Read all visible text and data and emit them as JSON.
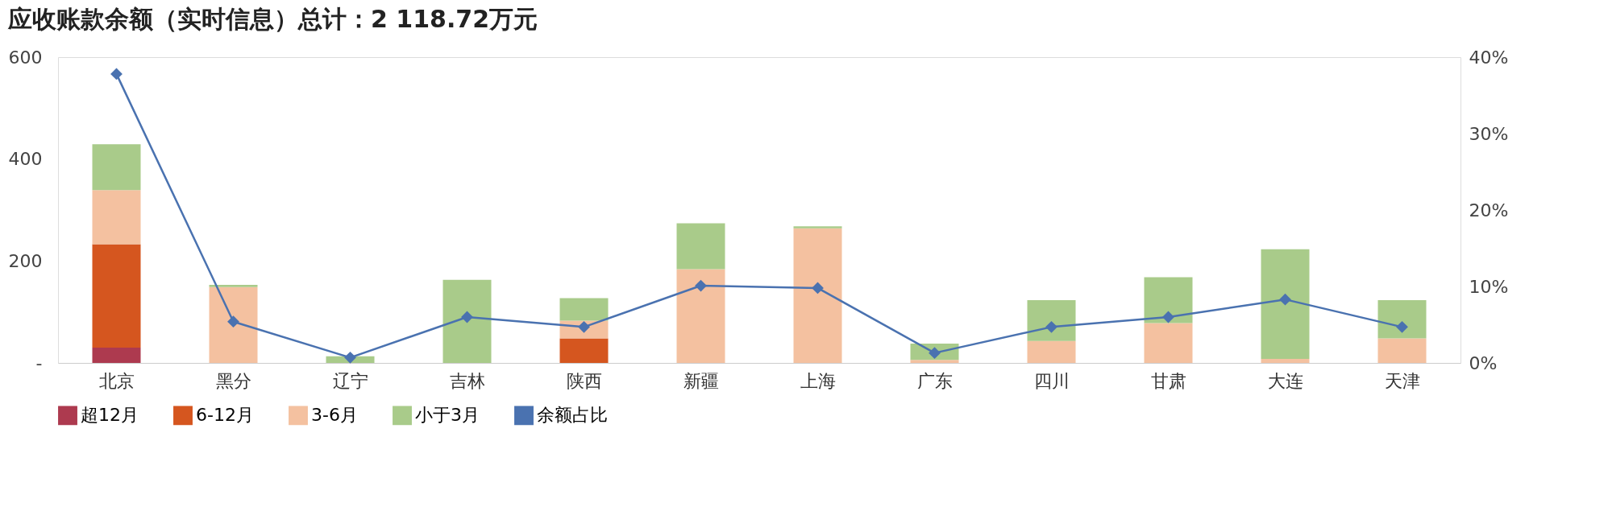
{
  "chart_data": {
    "type": "bar",
    "title": "应收账款余额（实时信息）总计：2 118.72万元",
    "categories": [
      "北京",
      "黑分",
      "辽宁",
      "吉林",
      "陕西",
      "新疆",
      "上海",
      "广东",
      "四川",
      "甘肃",
      "大连",
      "天津"
    ],
    "stacked": true,
    "series": [
      {
        "name": "超12月",
        "color": "#ad3a4f",
        "values": [
          30,
          0,
          0,
          0,
          0,
          0,
          0,
          0,
          0,
          0,
          0,
          0
        ]
      },
      {
        "name": "6-12月",
        "color": "#d5561f",
        "values": [
          203,
          0,
          0,
          0,
          48,
          0,
          0,
          0,
          0,
          0,
          0,
          0
        ]
      },
      {
        "name": "3-6月",
        "color": "#f4c1a0",
        "values": [
          106,
          149,
          0,
          0,
          35,
          184,
          264,
          6,
          43,
          78,
          8,
          48
        ]
      },
      {
        "name": "小于3月",
        "color": "#a9cb8a",
        "values": [
          90,
          4,
          13,
          163,
          44,
          90,
          4,
          32,
          80,
          90,
          215,
          75
        ]
      },
      {
        "name": "余额占比",
        "type": "line",
        "axis": "y2",
        "color": "#4a72b0",
        "values": [
          37.8,
          5.4,
          0.7,
          6.0,
          4.7,
          10.1,
          9.8,
          1.3,
          4.7,
          6.0,
          8.3,
          4.7
        ]
      }
    ],
    "ylim": [
      0,
      600
    ],
    "yticks": [
      {
        "value": 0,
        "label": "-"
      },
      200,
      400,
      600
    ],
    "y2lim": [
      0,
      40
    ],
    "y2ticks": [
      {
        "value": 0,
        "label": "0%"
      },
      {
        "value": 10,
        "label": "10%"
      },
      {
        "value": 20,
        "label": "20%"
      },
      {
        "value": 30,
        "label": "30%"
      },
      {
        "value": 40,
        "label": "40%"
      }
    ],
    "grid": false,
    "legend": "bottom",
    "marker": "diamond",
    "line_style": "solid"
  }
}
